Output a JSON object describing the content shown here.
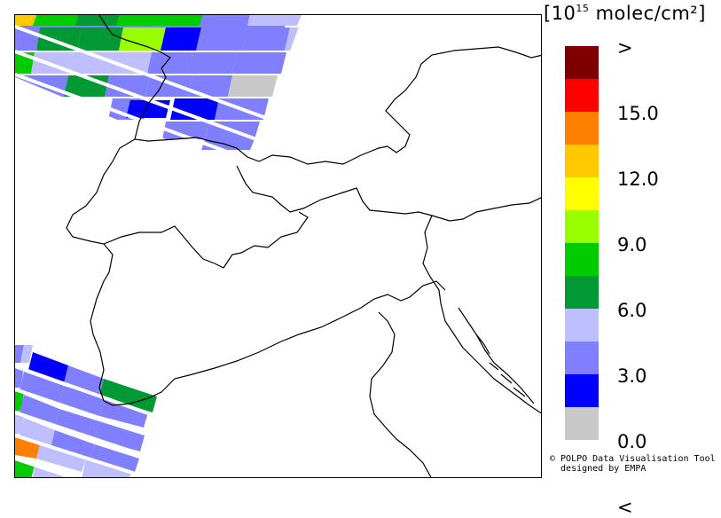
{
  "legend": {
    "unit_prefix": "[10",
    "unit_exp": "15",
    "unit_suffix": " molec/cm²]",
    "colors": [
      "#7f0000",
      "#ff0000",
      "#ff8000",
      "#ffc800",
      "#ffff00",
      "#99ff00",
      "#00cc00",
      "#009933",
      "#bfbfff",
      "#8080ff",
      "#0000ff",
      "#c8c8c8"
    ],
    "labels": [
      ">",
      "15.0",
      "12.0",
      "9.0",
      "6.0",
      "3.0",
      "0.0",
      "<"
    ]
  },
  "credit": {
    "line1": "© POLPO Data Visualisation Tool",
    "line2": "  designed by EMPA"
  }
}
